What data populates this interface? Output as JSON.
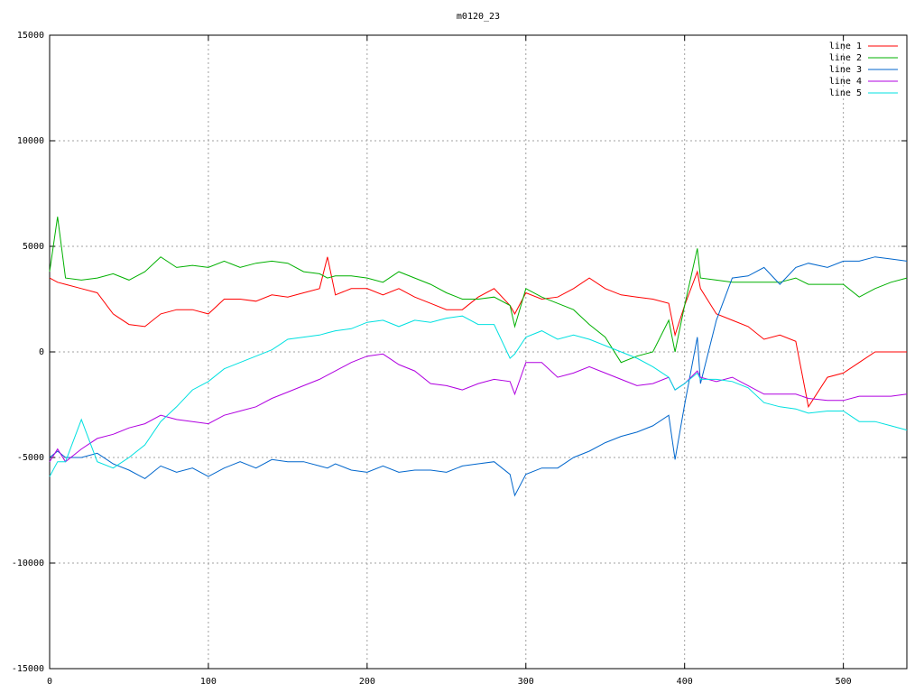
{
  "chart_data": {
    "type": "line",
    "title": "m0120_23",
    "x": [
      0,
      5,
      10,
      20,
      30,
      40,
      50,
      60,
      70,
      80,
      90,
      100,
      110,
      120,
      130,
      140,
      150,
      160,
      170,
      175,
      180,
      190,
      200,
      210,
      220,
      230,
      240,
      250,
      260,
      270,
      280,
      290,
      293,
      300,
      310,
      320,
      330,
      340,
      350,
      360,
      370,
      380,
      390,
      394,
      400,
      408,
      410,
      420,
      430,
      440,
      450,
      460,
      470,
      478,
      490,
      500,
      510,
      520,
      530,
      540
    ],
    "series": [
      {
        "name": "line 1",
        "color": "#ff0000",
        "values": [
          3500,
          3300,
          3200,
          3000,
          2800,
          1800,
          1300,
          1200,
          1800,
          2000,
          2000,
          1800,
          2500,
          2500,
          2400,
          2700,
          2600,
          2800,
          3000,
          4500,
          2700,
          3000,
          3000,
          2700,
          3000,
          2600,
          2300,
          2000,
          2000,
          2600,
          3000,
          2200,
          1800,
          2800,
          2500,
          2600,
          3000,
          3500,
          3000,
          2700,
          2600,
          2500,
          2300,
          800,
          2200,
          3800,
          3000,
          1800,
          1500,
          1200,
          600,
          800,
          500,
          -2600,
          -1200,
          -1000,
          -500,
          0,
          0,
          0
        ]
      },
      {
        "name": "line 2",
        "color": "#00b000",
        "values": [
          3800,
          6400,
          3500,
          3400,
          3500,
          3700,
          3400,
          3800,
          4500,
          4000,
          4100,
          4000,
          4300,
          4000,
          4200,
          4300,
          4200,
          3800,
          3700,
          3500,
          3600,
          3600,
          3500,
          3300,
          3800,
          3500,
          3200,
          2800,
          2500,
          2500,
          2600,
          2200,
          1200,
          3000,
          2600,
          2300,
          2000,
          1300,
          700,
          -500,
          -200,
          0,
          1500,
          0,
          2200,
          4900,
          3500,
          3400,
          3300,
          3300,
          3300,
          3300,
          3500,
          3200,
          3200,
          3200,
          2600,
          3000,
          3300,
          3500
        ]
      },
      {
        "name": "line 3",
        "color": "#0066cc",
        "values": [
          -5000,
          -4700,
          -5000,
          -5000,
          -4800,
          -5300,
          -5600,
          -6000,
          -5400,
          -5700,
          -5500,
          -5900,
          -5500,
          -5200,
          -5500,
          -5100,
          -5200,
          -5200,
          -5400,
          -5500,
          -5300,
          -5600,
          -5700,
          -5400,
          -5700,
          -5600,
          -5600,
          -5700,
          -5400,
          -5300,
          -5200,
          -5800,
          -6800,
          -5800,
          -5500,
          -5500,
          -5000,
          -4700,
          -4300,
          -4000,
          -3800,
          -3500,
          -3000,
          -5100,
          -2500,
          700,
          -1500,
          1500,
          3500,
          3600,
          4000,
          3200,
          4000,
          4200,
          4000,
          4300,
          4300,
          4500,
          4400,
          4300
        ]
      },
      {
        "name": "line 4",
        "color": "#b000e0",
        "values": [
          -5200,
          -4600,
          -5200,
          -4600,
          -4100,
          -3900,
          -3600,
          -3400,
          -3000,
          -3200,
          -3300,
          -3400,
          -3000,
          -2800,
          -2600,
          -2200,
          -1900,
          -1600,
          -1300,
          -1100,
          -900,
          -500,
          -200,
          -100,
          -600,
          -900,
          -1500,
          -1600,
          -1800,
          -1500,
          -1300,
          -1400,
          -2000,
          -500,
          -500,
          -1200,
          -1000,
          -700,
          -1000,
          -1300,
          -1600,
          -1500,
          -1200,
          -1800,
          -1500,
          -900,
          -1200,
          -1400,
          -1200,
          -1600,
          -2000,
          -2000,
          -2000,
          -2200,
          -2300,
          -2300,
          -2100,
          -2100,
          -2100,
          -2000
        ]
      },
      {
        "name": "line 5",
        "color": "#00e0e0",
        "values": [
          -5900,
          -5200,
          -5200,
          -3200,
          -5200,
          -5500,
          -5000,
          -4400,
          -3300,
          -2600,
          -1800,
          -1400,
          -800,
          -500,
          -200,
          100,
          600,
          700,
          800,
          900,
          1000,
          1100,
          1400,
          1500,
          1200,
          1500,
          1400,
          1600,
          1700,
          1300,
          1300,
          -300,
          -100,
          700,
          1000,
          600,
          800,
          600,
          300,
          0,
          -300,
          -700,
          -1200,
          -1800,
          -1500,
          -1000,
          -1300,
          -1300,
          -1400,
          -1700,
          -2400,
          -2600,
          -2700,
          -2900,
          -2800,
          -2800,
          -3300,
          -3300,
          -3500,
          -3700
        ]
      }
    ],
    "xlim": [
      0,
      540
    ],
    "xticks": [
      0,
      100,
      200,
      300,
      400,
      500
    ],
    "ylim": [
      -15000,
      15000
    ],
    "yticks": [
      -15000,
      -10000,
      -5000,
      0,
      5000,
      10000,
      15000
    ],
    "grid": true,
    "legend": "top-right"
  }
}
